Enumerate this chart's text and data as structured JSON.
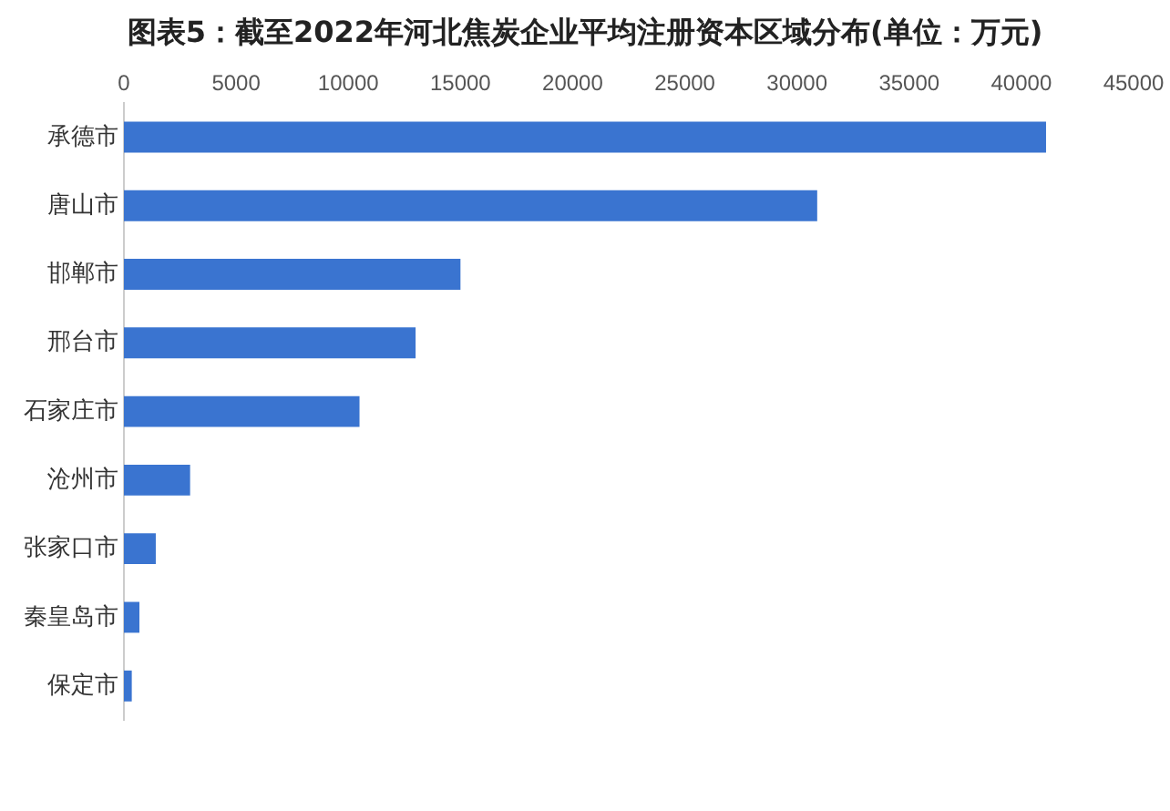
{
  "chart_data": {
    "type": "bar",
    "orientation": "horizontal",
    "title": "图表5：截至2022年河北焦炭企业平均注册资本区域分布(单位：万元)",
    "categories": [
      "承德市",
      "唐山市",
      "邯郸市",
      "邢台市",
      "石家庄市",
      "沧州市",
      "张家口市",
      "秦皇岛市",
      "保定市"
    ],
    "values": [
      41100,
      30900,
      15000,
      13000,
      10500,
      2950,
      1420,
      690,
      350
    ],
    "color": "#3a74d0",
    "xlim": [
      0,
      45000
    ],
    "xticks": [
      0,
      5000,
      10000,
      15000,
      20000,
      25000,
      30000,
      35000,
      40000,
      45000
    ],
    "grid": false,
    "legend": false
  }
}
